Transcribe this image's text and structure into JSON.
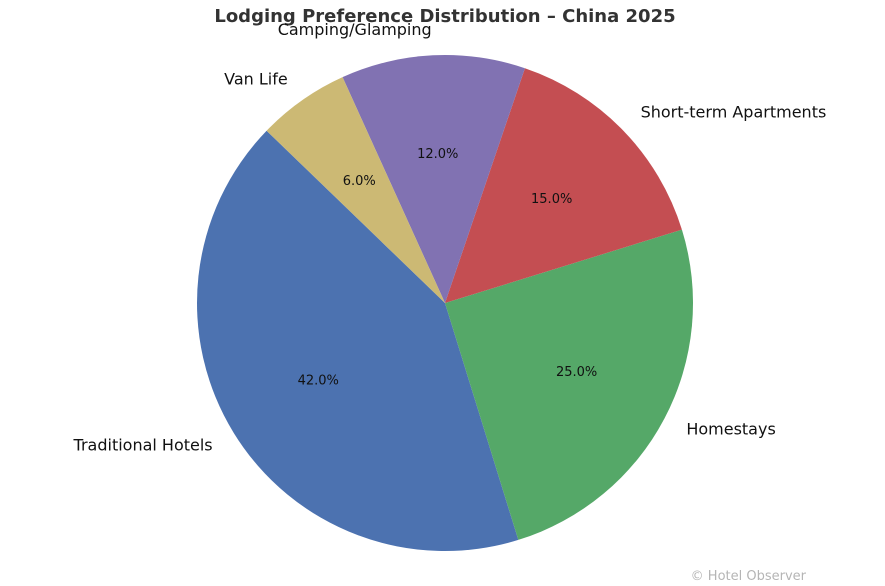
{
  "chart_data": {
    "type": "pie",
    "title": "Lodging Preference Distribution – China 2025",
    "categories": [
      "Traditional Hotels",
      "Homestays",
      "Short-term Apartments",
      "Camping/Glamping",
      "Van Life"
    ],
    "values": [
      42.0,
      25.0,
      15.0,
      12.0,
      6.0
    ],
    "value_labels": [
      "42.0%",
      "25.0%",
      "15.0%",
      "12.0%",
      "6.0%"
    ],
    "colors": [
      "#4c72b0",
      "#55a868",
      "#c44e52",
      "#8172b2",
      "#ccb974"
    ],
    "start_angle_deg": 136,
    "direction": "counterclockwise",
    "legend": "none"
  },
  "watermark": "© Hotel Observer"
}
